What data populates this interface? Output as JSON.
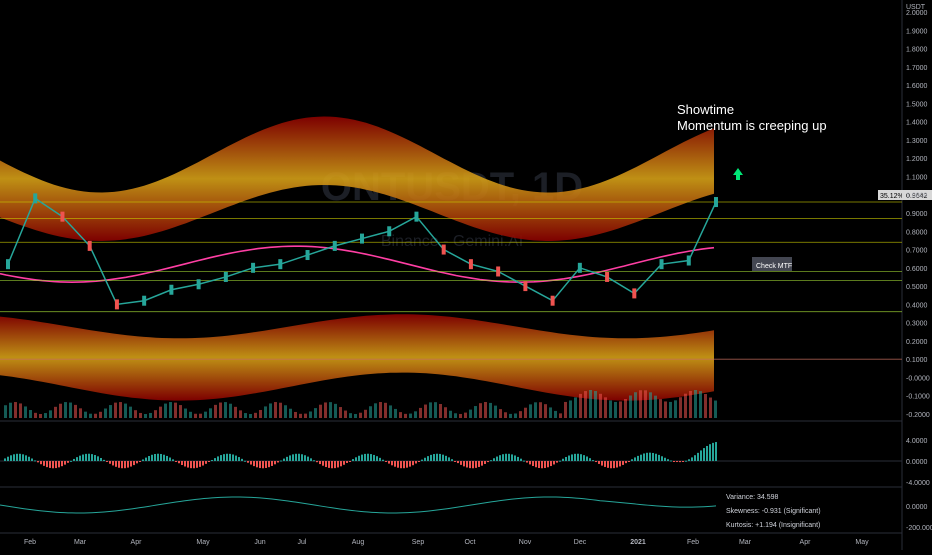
{
  "chart": {
    "watermark": "ONTUSDT, 1D",
    "watermark_sub": "Binance - Gemini.AI",
    "currency": "USDT",
    "annotation_title": "Showtime",
    "annotation_body": "Momentum is creeping up",
    "check_mtf_label": "Check MTF",
    "percent_tag": "35.12%",
    "price_tag": "0.9642",
    "colors": {
      "background": "#000000",
      "candle_up": "#26a69a",
      "candle_down": "#ef5350",
      "band_outer": "#8b0000",
      "band_inner": "#d4a017",
      "basis_line": "#ff3fa4",
      "arrow": "#00e676"
    }
  },
  "chart_data": [
    {
      "type": "line",
      "title": "ONTUSDT, 1D",
      "x_ticks": [
        "Feb",
        "Mar",
        "Apr",
        "May",
        "Jun",
        "Jul",
        "Aug",
        "Sep",
        "Oct",
        "Nov",
        "Dec",
        "2021",
        "Feb",
        "Mar",
        "Apr",
        "May"
      ],
      "y_ticks": [
        "2.0000",
        "1.9000",
        "1.8000",
        "1.7000",
        "1.6000",
        "1.5000",
        "1.4000",
        "1.3000",
        "1.2000",
        "1.1000",
        "1.0000",
        "0.9000",
        "0.8000",
        "0.7000",
        "0.6000",
        "0.5000",
        "0.4000",
        "0.3000",
        "0.2000",
        "0.1000",
        "-0.0000",
        "-0.1000",
        "-0.2000"
      ],
      "ylim": [
        -0.2,
        2.0
      ],
      "series": [
        {
          "name": "",
          "x": [
            "Jan",
            "Feb",
            "Feb",
            "Mar",
            "Mar",
            "Apr",
            "Apr",
            "May",
            "May",
            "Jun",
            "Jun",
            "Jul",
            "Jul",
            "Aug",
            "Aug",
            "Sep",
            "Sep",
            "Oct",
            "Oct",
            "Nov",
            "Nov",
            "Dec",
            "Dec",
            "2021",
            "Jan",
            "Feb",
            "Feb"
          ],
          "values": [
            0.62,
            0.98,
            0.88,
            0.72,
            0.4,
            0.42,
            0.48,
            0.51,
            0.55,
            0.6,
            0.62,
            0.67,
            0.72,
            0.76,
            0.8,
            0.88,
            0.7,
            0.62,
            0.58,
            0.5,
            0.42,
            0.6,
            0.55,
            0.46,
            0.62,
            0.64,
            0.96
          ]
        }
      ],
      "horizontal_levels": [
        0.96,
        0.87,
        0.74,
        0.58,
        0.53,
        0.36,
        0.1
      ]
    },
    {
      "type": "bar",
      "title": "",
      "y_ticks": [
        "4.0000",
        "0.0000",
        "-4.0000"
      ],
      "ylim": [
        -5,
        5
      ]
    },
    {
      "type": "line",
      "title": "",
      "y_ticks": [
        "0.0000",
        "-200.0000"
      ],
      "stats": {
        "variance": "Variance: 34.598",
        "skewness": "Skewness: -0.931 (Significant)",
        "kurtosis": "Kurtosis: +1.194 (Insignificant)"
      }
    }
  ]
}
